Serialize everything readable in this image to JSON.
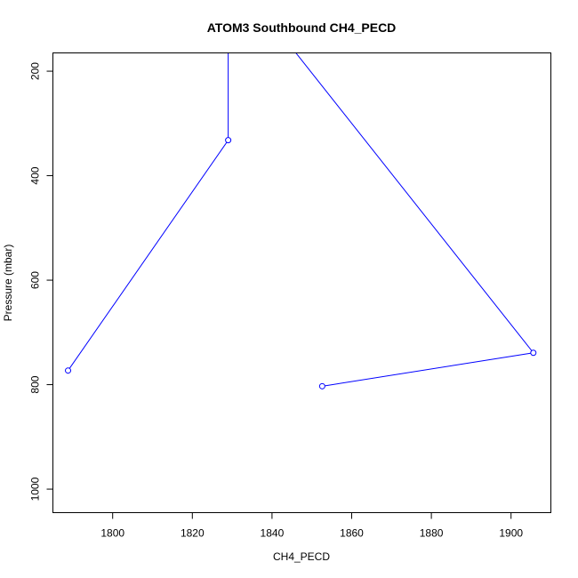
{
  "chart_data": {
    "type": "line",
    "title": "ATOM3 Southbound CH4_PECD",
    "xlabel": "CH4_PECD",
    "ylabel": "Pressure (mbar)",
    "xlim": [
      1785,
      1910
    ],
    "ylim": [
      1045,
      165
    ],
    "y_reversed": true,
    "x_ticks": [
      1800,
      1820,
      1840,
      1860,
      1880,
      1900
    ],
    "y_ticks": [
      200,
      400,
      600,
      800,
      1000
    ],
    "grid": false,
    "legend": "none",
    "series": [
      {
        "color": "#0000ff",
        "points": [
          {
            "x": 1852.6,
            "y": 803
          },
          {
            "x": 1905.6,
            "y": 739
          },
          {
            "x": 1846.0,
            "y": 165
          },
          {
            "x": 1829.0,
            "y": 165
          },
          {
            "x": 1829.0,
            "y": 332
          },
          {
            "x": 1788.8,
            "y": 773
          }
        ],
        "markers": [
          {
            "x": 1852.6,
            "y": 803
          },
          {
            "x": 1905.6,
            "y": 739
          },
          {
            "x": 1829.0,
            "y": 332
          },
          {
            "x": 1788.8,
            "y": 773
          }
        ]
      }
    ]
  }
}
